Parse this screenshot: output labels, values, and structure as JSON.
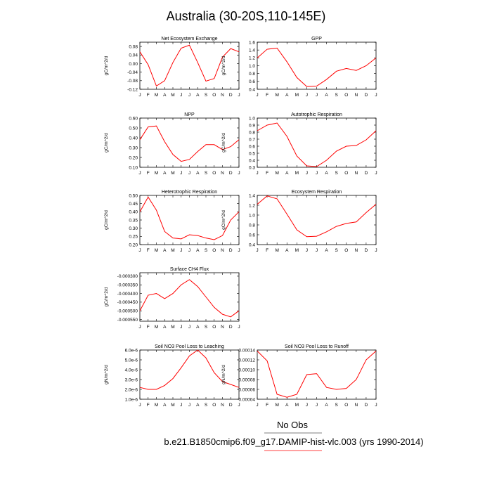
{
  "figure_title": "Australia (30-20S,110-145E)",
  "legend": {
    "no_obs_label": "No Obs",
    "case_label": "b.e21.B1850cmip6.f09_g17.DAMIP-hist-vlc.003 (yrs 1990-2014)",
    "obs_color": "#000000",
    "case_color": "#ff0000"
  },
  "colors": {
    "series": "#ff0000",
    "axes": "#000000"
  },
  "chart_data": [
    {
      "type": "line",
      "title": "Net Ecosystem Exchange",
      "ylabel": "gC/m^2/d",
      "categories": [
        "J",
        "F",
        "M",
        "A",
        "M",
        "J",
        "J",
        "A",
        "S",
        "O",
        "N",
        "D",
        "J"
      ],
      "ylim": [
        -0.12,
        0.1
      ],
      "yticks": [
        -0.12,
        -0.08,
        -0.04,
        0.0,
        0.04,
        0.08
      ],
      "ytick_labels": [
        "-0.12",
        "-0.08",
        "-0.04",
        "0.00",
        "0.04",
        "0.08"
      ],
      "values": [
        0.055,
        -0.005,
        -0.105,
        -0.08,
        0.005,
        0.072,
        0.086,
        0.005,
        -0.082,
        -0.07,
        0.03,
        0.07,
        0.055
      ]
    },
    {
      "type": "line",
      "title": "GPP",
      "ylabel": "gC/m^2/d",
      "categories": [
        "J",
        "F",
        "M",
        "A",
        "M",
        "J",
        "J",
        "A",
        "S",
        "O",
        "N",
        "D",
        "J"
      ],
      "ylim": [
        0.4,
        1.6
      ],
      "yticks": [
        0.4,
        0.6,
        0.8,
        1.0,
        1.2,
        1.4,
        1.6
      ],
      "ytick_labels": [
        "0.4",
        "0.6",
        "0.8",
        "1.0",
        "1.2",
        "1.4",
        "1.6"
      ],
      "values": [
        1.2,
        1.42,
        1.45,
        1.1,
        0.7,
        0.47,
        0.48,
        0.65,
        0.86,
        0.93,
        0.88,
        1.0,
        1.2
      ]
    },
    {
      "type": "line",
      "title": "NPP",
      "ylabel": "gC/m^2/d",
      "categories": [
        "J",
        "F",
        "M",
        "A",
        "M",
        "J",
        "J",
        "A",
        "S",
        "O",
        "N",
        "D",
        "J"
      ],
      "ylim": [
        0.1,
        0.6
      ],
      "yticks": [
        0.1,
        0.2,
        0.3,
        0.4,
        0.5,
        0.6
      ],
      "ytick_labels": [
        "0.10",
        "0.20",
        "0.30",
        "0.40",
        "0.50",
        "0.60"
      ],
      "values": [
        0.38,
        0.51,
        0.52,
        0.36,
        0.23,
        0.16,
        0.18,
        0.26,
        0.33,
        0.33,
        0.28,
        0.31,
        0.38
      ]
    },
    {
      "type": "line",
      "title": "Autotrophic Respiration",
      "ylabel": "gC/m^2/d",
      "categories": [
        "J",
        "F",
        "M",
        "A",
        "M",
        "J",
        "J",
        "A",
        "S",
        "O",
        "N",
        "D",
        "J"
      ],
      "ylim": [
        0.3,
        1.0
      ],
      "yticks": [
        0.3,
        0.4,
        0.5,
        0.6,
        0.7,
        0.8,
        0.9,
        1.0
      ],
      "ytick_labels": [
        "0.3",
        "0.4",
        "0.5",
        "0.6",
        "0.7",
        "0.8",
        "0.9",
        "1.0"
      ],
      "values": [
        0.82,
        0.9,
        0.93,
        0.74,
        0.46,
        0.32,
        0.31,
        0.4,
        0.53,
        0.6,
        0.61,
        0.69,
        0.82
      ]
    },
    {
      "type": "line",
      "title": "Heterotrophic Respiration",
      "ylabel": "gC/m^2/d",
      "categories": [
        "J",
        "F",
        "M",
        "A",
        "M",
        "J",
        "J",
        "A",
        "S",
        "O",
        "N",
        "D",
        "J"
      ],
      "ylim": [
        0.2,
        0.5
      ],
      "yticks": [
        0.2,
        0.25,
        0.3,
        0.35,
        0.4,
        0.45,
        0.5
      ],
      "ytick_labels": [
        "0.20",
        "0.25",
        "0.30",
        "0.35",
        "0.40",
        "0.45",
        "0.50"
      ],
      "values": [
        0.4,
        0.49,
        0.41,
        0.28,
        0.24,
        0.235,
        0.26,
        0.255,
        0.24,
        0.23,
        0.255,
        0.35,
        0.4
      ]
    },
    {
      "type": "line",
      "title": "Ecosystem Respiration",
      "ylabel": "gC/m^2/d",
      "categories": [
        "J",
        "F",
        "M",
        "A",
        "M",
        "J",
        "J",
        "A",
        "S",
        "O",
        "N",
        "D",
        "J"
      ],
      "ylim": [
        0.4,
        1.4
      ],
      "yticks": [
        0.4,
        0.6,
        0.8,
        1.0,
        1.2,
        1.4
      ],
      "ytick_labels": [
        "0.4",
        "0.6",
        "0.8",
        "1.0",
        "1.2",
        "1.4"
      ],
      "values": [
        1.22,
        1.39,
        1.33,
        1.02,
        0.7,
        0.56,
        0.57,
        0.66,
        0.77,
        0.83,
        0.86,
        1.05,
        1.22
      ]
    },
    {
      "type": "line",
      "title": "Surface CH4 Flux",
      "ylabel": "gC/m^2/d",
      "categories": [
        "J",
        "F",
        "M",
        "A",
        "M",
        "J",
        "J",
        "A",
        "S",
        "O",
        "N",
        "D",
        "J"
      ],
      "ylim": [
        -0.00056,
        -0.00028
      ],
      "yticks": [
        -0.00055,
        -0.0005,
        -0.00045,
        -0.0004,
        -0.00035,
        -0.0003
      ],
      "ytick_labels": [
        "-0.000550",
        "-0.000500",
        "-0.000450",
        "-0.000400",
        "-0.000350",
        "-0.000300"
      ],
      "values": [
        -0.0005,
        -0.00041,
        -0.0004,
        -0.00043,
        -0.0004,
        -0.00035,
        -0.00032,
        -0.00036,
        -0.00042,
        -0.00048,
        -0.00052,
        -0.000535,
        -0.0005
      ]
    },
    {
      "type": "line",
      "title": "Soil NO3 Pool Loss to Leaching",
      "ylabel": "gN/m^2/d",
      "categories": [
        "J",
        "F",
        "M",
        "A",
        "M",
        "J",
        "J",
        "A",
        "S",
        "O",
        "N",
        "D",
        "J"
      ],
      "ylim": [
        1e-06,
        6e-06
      ],
      "yticks": [
        1e-06,
        2e-06,
        3e-06,
        4e-06,
        5e-06,
        6e-06
      ],
      "ytick_labels": [
        "1.0e-6",
        "2.0e-6",
        "3.0e-6",
        "4.0e-6",
        "5.0e-6",
        "6.0e-6"
      ],
      "values": [
        2.2e-06,
        2e-06,
        2e-06,
        2.4e-06,
        3.1e-06,
        4.2e-06,
        5.4e-06,
        6e-06,
        5.2e-06,
        3.7e-06,
        2.8e-06,
        2.5e-06,
        2.2e-06
      ]
    },
    {
      "type": "line",
      "title": "Soil NO3 Pool Loss to Runoff",
      "ylabel": "gN/m^2/d",
      "categories": [
        "J",
        "F",
        "M",
        "A",
        "M",
        "J",
        "J",
        "A",
        "S",
        "O",
        "N",
        "D",
        "J"
      ],
      "ylim": [
        4e-05,
        0.00014
      ],
      "yticks": [
        4e-05,
        6e-05,
        8e-05,
        0.0001,
        0.00012,
        0.00014
      ],
      "ytick_labels": [
        "0.00004",
        "0.00006",
        "0.00008",
        "0.00010",
        "0.00012",
        "0.00014"
      ],
      "values": [
        0.000138,
        0.000118,
        5e-05,
        4.4e-05,
        5e-05,
        9e-05,
        9.2e-05,
        6.4e-05,
        6e-05,
        6.2e-05,
        8e-05,
        0.00012,
        0.000138
      ]
    }
  ]
}
